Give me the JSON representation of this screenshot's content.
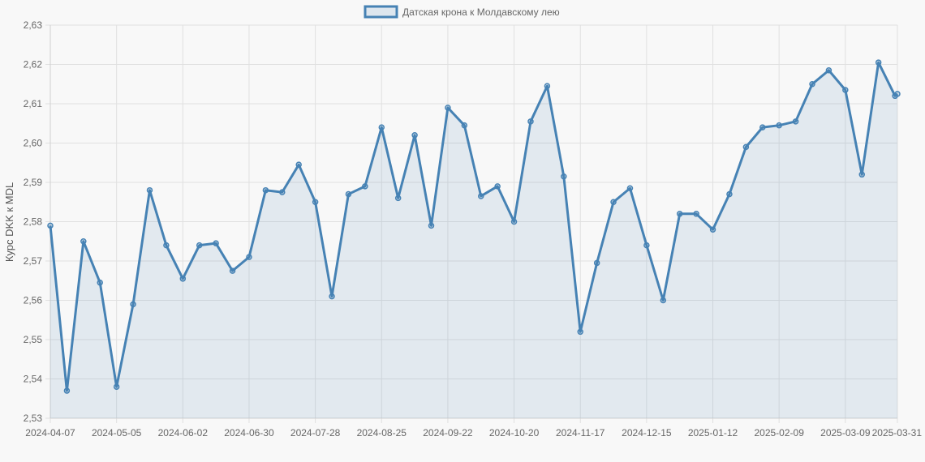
{
  "chart_data": {
    "type": "area",
    "legend": "top-center",
    "grid": true,
    "colors": {
      "line": "#4682b4",
      "fill": "rgba(70,130,180,0.12)",
      "grid": "#e0e0e0",
      "background": "#f8f8f8"
    },
    "ylabel": "Курс DKK к MDL",
    "xlabel": "",
    "ylim": [
      2.53,
      2.63
    ],
    "yticks": [
      "2,53",
      "2,54",
      "2,55",
      "2,56",
      "2,57",
      "2,58",
      "2,59",
      "2,60",
      "2,61",
      "2,62",
      "2,63"
    ],
    "xtick_labels": [
      "2024-04-07",
      "2024-05-05",
      "2024-06-02",
      "2024-06-30",
      "2024-07-28",
      "2024-08-25",
      "2024-09-22",
      "2024-10-20",
      "2024-11-17",
      "2024-12-15",
      "2025-01-12",
      "2025-02-09",
      "2025-03-09",
      "2025-03-31"
    ],
    "x": [
      "2024-04-07",
      "2024-04-14",
      "2024-04-21",
      "2024-04-28",
      "2024-05-05",
      "2024-05-12",
      "2024-05-19",
      "2024-05-26",
      "2024-06-02",
      "2024-06-09",
      "2024-06-16",
      "2024-06-23",
      "2024-06-30",
      "2024-07-07",
      "2024-07-14",
      "2024-07-21",
      "2024-07-28",
      "2024-08-04",
      "2024-08-11",
      "2024-08-18",
      "2024-08-25",
      "2024-09-01",
      "2024-09-08",
      "2024-09-15",
      "2024-09-22",
      "2024-09-29",
      "2024-10-06",
      "2024-10-13",
      "2024-10-20",
      "2024-10-27",
      "2024-11-03",
      "2024-11-10",
      "2024-11-17",
      "2024-11-24",
      "2024-12-01",
      "2024-12-08",
      "2024-12-15",
      "2024-12-22",
      "2024-12-29",
      "2025-01-05",
      "2025-01-12",
      "2025-01-19",
      "2025-01-26",
      "2025-02-02",
      "2025-02-09",
      "2025-02-16",
      "2025-02-23",
      "2025-03-02",
      "2025-03-09",
      "2025-03-16",
      "2025-03-23",
      "2025-03-30",
      "2025-03-31"
    ],
    "series": [
      {
        "name": "Датская крона к Молдавскому лею",
        "values": [
          2.579,
          2.537,
          2.575,
          2.5645,
          2.538,
          2.559,
          2.588,
          2.574,
          2.5655,
          2.574,
          2.5745,
          2.5675,
          2.571,
          2.588,
          2.5875,
          2.5945,
          2.585,
          2.561,
          2.587,
          2.589,
          2.604,
          2.586,
          2.602,
          2.579,
          2.609,
          2.6045,
          2.5865,
          2.589,
          2.58,
          2.6055,
          2.6145,
          2.5915,
          2.552,
          2.5695,
          2.585,
          2.5885,
          2.574,
          2.56,
          2.582,
          2.582,
          2.578,
          2.587,
          2.599,
          2.604,
          2.6045,
          2.6055,
          2.615,
          2.6185,
          2.6135,
          2.592,
          2.6205,
          2.612,
          2.6125
        ]
      }
    ]
  }
}
